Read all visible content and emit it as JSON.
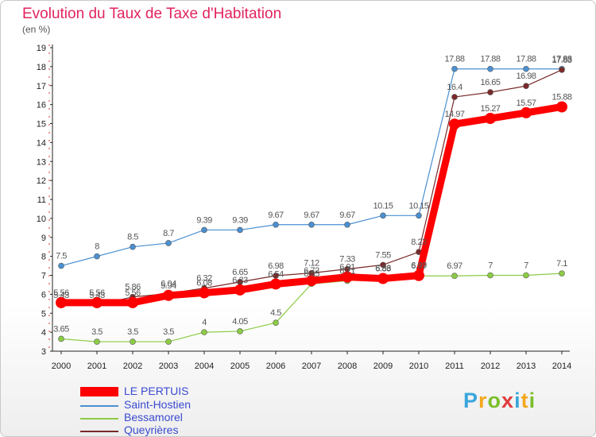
{
  "header": {
    "title": "Evolution du Taux de Taxe d'Habitation",
    "subtitle": "(en %)"
  },
  "logo": {
    "text": "Proxiti",
    "colors": [
      "#3aa6dc",
      "#f2a81d",
      "#7bbf2a",
      "#e03c3c",
      "#3aa6dc",
      "#f2a81d",
      "#7bbf2a"
    ]
  },
  "chart_data": {
    "type": "line",
    "title": "Evolution du Taux de Taxe d'Habitation",
    "ylabel": "(en %)",
    "xlabel": "",
    "ylim": [
      3,
      19
    ],
    "yticks": [
      3,
      4,
      5,
      6,
      7,
      8,
      9,
      10,
      11,
      12,
      13,
      14,
      15,
      16,
      17,
      18,
      19
    ],
    "grid": false,
    "legend_position": "bottom-left",
    "x": [
      "2000",
      "2001",
      "2002",
      "2003",
      "2004",
      "2005",
      "2006",
      "2007",
      "2008",
      "2009",
      "2010",
      "2011",
      "2012",
      "2013",
      "2014"
    ],
    "series": [
      {
        "name": "LE PERTUIS",
        "color": "#ff0000",
        "emphasis": true,
        "values": [
          5.56,
          5.56,
          5.56,
          5.94,
          6.08,
          6.23,
          6.54,
          6.72,
          6.91,
          6.83,
          6.99,
          14.97,
          15.27,
          15.57,
          15.88
        ],
        "labels": [
          "5.56",
          "5.56",
          "5.56",
          "5.94",
          "6.08",
          "6.23",
          "6.54",
          "6.72",
          "6.91",
          "6.83",
          "6.99",
          "14.97",
          "15.27",
          "15.57",
          "15.88"
        ]
      },
      {
        "name": "Saint-Hostien",
        "color": "#4a90d0",
        "values": [
          7.5,
          8,
          8.5,
          8.7,
          9.39,
          9.39,
          9.67,
          9.67,
          9.67,
          10.15,
          10.15,
          17.88,
          17.88,
          17.88,
          17.88
        ],
        "labels": [
          "7.5",
          "8",
          "8.5",
          "8.7",
          "9.39",
          "9.39",
          "9.67",
          "9.67",
          "9.67",
          "10.15",
          "10.15",
          "17.88",
          "17.88",
          "17.88",
          "17.88"
        ]
      },
      {
        "name": "Bessamorel",
        "color": "#8ccc44",
        "values": [
          3.65,
          3.5,
          3.5,
          3.5,
          4,
          4.05,
          4.5,
          6.55,
          6.71,
          6.86,
          6.97,
          6.97,
          7,
          7,
          7.1
        ],
        "labels": [
          "3.65",
          "3.5",
          "3.5",
          "3.5",
          "4",
          "4.05",
          "4.5",
          "6.55",
          "6.71",
          "6.86",
          "6.97",
          "6.97",
          "7",
          "7",
          "7.1"
        ]
      },
      {
        "name": "Queyrières",
        "color": "#7a2a2a",
        "values": [
          5.43,
          5.43,
          5.86,
          6.04,
          6.32,
          6.65,
          6.98,
          7.12,
          7.33,
          7.55,
          8.23,
          16.4,
          16.65,
          16.98,
          17.83
        ],
        "labels": [
          "5.43",
          "5.43",
          "5.86",
          "6.04",
          "6.32",
          "6.65",
          "6.98",
          "7.12",
          "7.33",
          "7.55",
          "8.23",
          "16.4",
          "16.65",
          "16.98",
          "17.83"
        ]
      }
    ]
  }
}
